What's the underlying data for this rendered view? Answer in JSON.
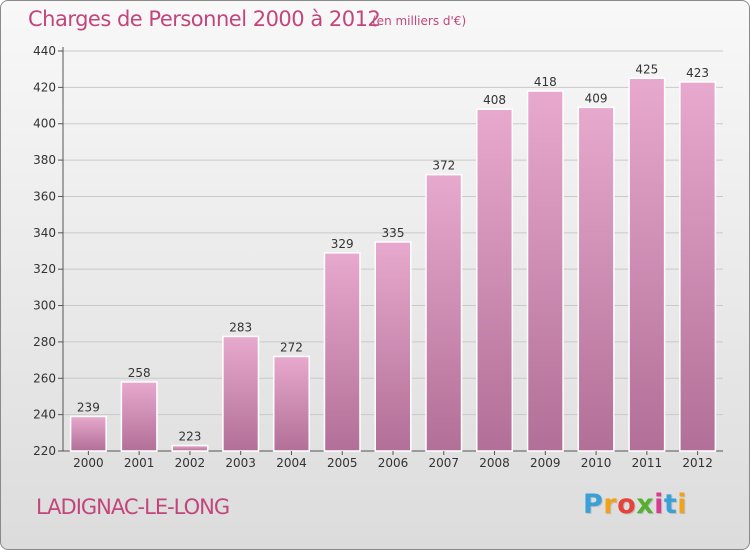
{
  "title": "Charges de Personnel 2000 à 2012",
  "subtitle": "(en milliers d'€)",
  "place_name": "LADIGNAC-LE-LONG",
  "logo": {
    "letters": [
      "P",
      "r",
      "o",
      "x",
      "i",
      "t",
      "i"
    ],
    "colors": [
      "#3aa0d8",
      "#f0a21c",
      "#e5423a",
      "#55b030",
      "#d93b8e",
      "#3aa0d8",
      "#f0a21c"
    ]
  },
  "colors": {
    "title": "#c2467c",
    "bar_top": "#e8a9ce",
    "bar_bottom": "#b26f97",
    "axis_text": "#333333",
    "grid": "#c9c9c9"
  },
  "chart_data": {
    "type": "bar",
    "title": "Charges de Personnel 2000 à 2012",
    "subtitle": "(en milliers d'€)",
    "categories": [
      "2000",
      "2001",
      "2002",
      "2003",
      "2004",
      "2005",
      "2006",
      "2007",
      "2008",
      "2009",
      "2010",
      "2011",
      "2012"
    ],
    "values": [
      239,
      258,
      223,
      283,
      272,
      329,
      335,
      372,
      408,
      418,
      409,
      425,
      423
    ],
    "data_labels": [
      "239",
      "258",
      "223",
      "283",
      "272",
      "329",
      "335",
      "372",
      "408",
      "418",
      "409",
      "425",
      "423"
    ],
    "ylim": [
      220,
      440
    ],
    "yticks": [
      220,
      240,
      260,
      280,
      300,
      320,
      340,
      360,
      380,
      400,
      420,
      440
    ],
    "ytick_labels": [
      "220",
      "240",
      "260",
      "280",
      "300",
      "320",
      "340",
      "360",
      "380",
      "400",
      "420",
      "440"
    ],
    "grid": true,
    "legend": "none",
    "xlabel": "",
    "ylabel": ""
  }
}
